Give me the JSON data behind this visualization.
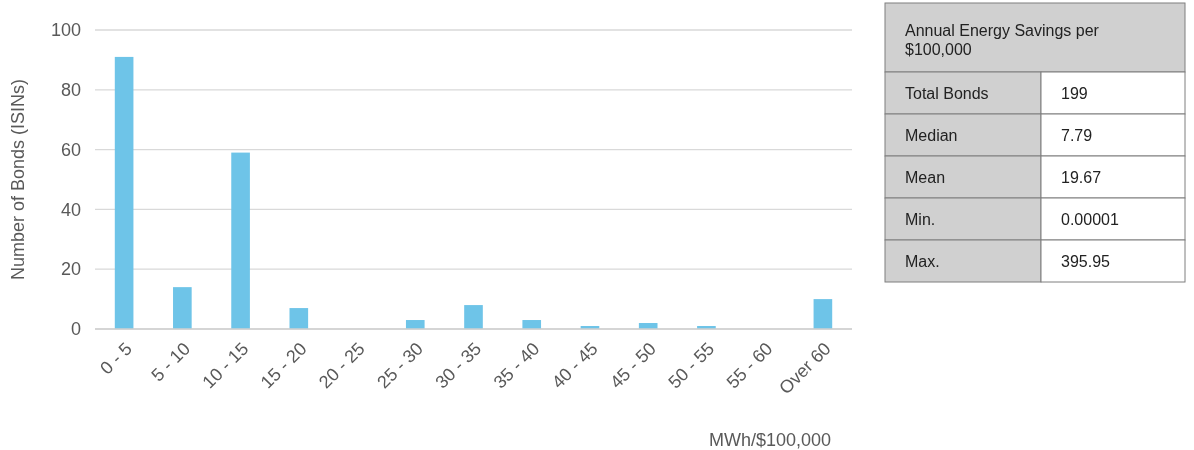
{
  "chart_data": [
    {
      "type": "bar",
      "ylabel": "Number of Bonds (ISINs)",
      "xlabel": "MWh/$100,000",
      "categories": [
        "0 - 5",
        "5 - 10",
        "10 - 15",
        "15 - 20",
        "20 - 25",
        "25 - 30",
        "30 - 35",
        "35 - 40",
        "40 - 45",
        "45 - 50",
        "50 - 55",
        "55 - 60",
        "Over 60"
      ],
      "values": [
        91,
        14,
        59,
        7,
        0,
        3,
        8,
        3,
        1,
        2,
        1,
        0,
        10
      ],
      "color": "#6ec4e8",
      "ylim": [
        0,
        100
      ],
      "yticks": [
        0,
        20,
        40,
        60,
        80,
        100
      ],
      "grid": "y"
    },
    {
      "type": "other",
      "title": "Annual Energy Savings per $100,000",
      "categories": [
        "Total Bonds",
        "Median",
        "Mean",
        "Min.",
        "Max."
      ],
      "values": [
        199,
        7.79,
        19.67,
        1e-05,
        395.95
      ],
      "value_labels": [
        "199",
        "7.79",
        "19.67",
        "0.00001",
        "395.95"
      ]
    }
  ]
}
